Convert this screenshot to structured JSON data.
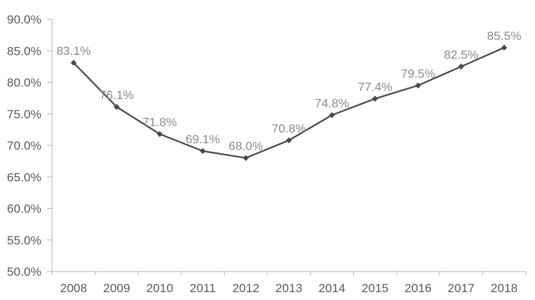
{
  "chart_data": {
    "type": "line",
    "title": "",
    "xlabel": "",
    "ylabel": "",
    "categories": [
      "2008",
      "2009",
      "2010",
      "2011",
      "2012",
      "2013",
      "2014",
      "2015",
      "2016",
      "2017",
      "2018"
    ],
    "values": [
      83.1,
      76.1,
      71.8,
      69.1,
      68.0,
      70.8,
      74.8,
      77.4,
      79.5,
      82.5,
      85.5
    ],
    "data_labels": [
      "83.1%",
      "76.1%",
      "71.8%",
      "69.1%",
      "68.0%",
      "70.8%",
      "74.8%",
      "77.4%",
      "79.5%",
      "82.5%",
      "85.5%"
    ],
    "ylim": [
      50,
      90
    ],
    "y_tick_step": 5,
    "y_tick_labels": [
      "50.0%",
      "55.0%",
      "60.0%",
      "65.0%",
      "70.0%",
      "75.0%",
      "80.0%",
      "85.0%",
      "90.0%"
    ],
    "grid": false,
    "legend": false,
    "marker": "diamond",
    "colors": {
      "line": "#4c4947",
      "marker": "#4c4947",
      "data_label": "#8a8a8a",
      "axis_text": "#595959",
      "axis_line": "#b3b3b3",
      "background": "#ffffff"
    }
  }
}
